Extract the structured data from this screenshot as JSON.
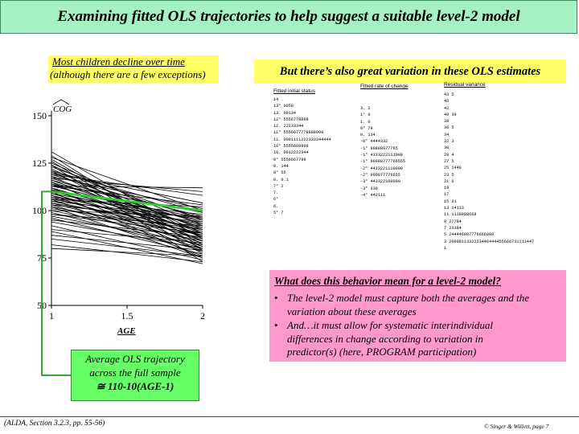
{
  "title": "Examining fitted OLS trajectories to help suggest a suitable level-2 model",
  "left_note": {
    "line1": "Most children decline over time",
    "line2": "(although there are a few exceptions)"
  },
  "right_heading": "But there’s also great variation in these OLS estimates",
  "stem_plots": [
    {
      "title": "Fitted initial status",
      "rows": [
        "14 .  ",
        "13° 0058",
        "13. 00134",
        "12° 5556778899",
        "12. 22233344",
        "11° 5556677778888999",
        "11. 0001111222333344444",
        "10° 5555668999",
        "10. 0012222344",
        "9° 5556667799",
        "9. 144",
        "8° 55",
        "8. 0.1",
        "7° 2",
        "7. ",
        "6° ",
        "6. ",
        "5° 7"
      ]
    },
    {
      "title": "Fitted rate of change",
      "rows": [
        "3. 2",
        "1° 0",
        "1. 0",
        "0° 79",
        "0. 134",
        "-0° 4444332",
        "-1° 99888877765",
        "-1° 4333222111000",
        "-1° 99988777766555",
        "-2° 4433221110000",
        "-2° 999877776655",
        "-3° 443322100000",
        "-3° 330",
        "-4° 442111"
      ]
    },
    {
      "title": "Residual variance",
      "rows": [
        "43 5",
        "46 ",
        "42 ",
        "40 39",
        "38 ",
        "36 5",
        "34 ",
        "32 3",
        "30 ",
        "29 4",
        "27 5",
        "25 1440",
        "23 5",
        "21 6",
        "19 ",
        "17 ",
        "15 21",
        "13 14133",
        "11 1118888668",
        "9 27784",
        "7 23384",
        "5 244446887776666888",
        "3 2000011332223446444455666731111447",
        "1 "
      ]
    }
  ],
  "chart_data": {
    "type": "line",
    "title": "",
    "xlabel": "AGE",
    "ylabel": "COG",
    "xlim": [
      1,
      2
    ],
    "ylim": [
      50,
      150
    ],
    "x_ticks": [
      "1",
      "1.5",
      "2"
    ],
    "y_ticks": [
      "50",
      "75",
      "100",
      "125",
      "150"
    ],
    "series_description_note": "",
    "series": [
      {
        "x": [
          1,
          2
        ],
        "y": [
          129,
          79
        ]
      },
      {
        "x": [
          1,
          2
        ],
        "y": [
          127,
          82
        ]
      },
      {
        "x": [
          1,
          2
        ],
        "y": [
          125,
          92
        ]
      },
      {
        "x": [
          1,
          2
        ],
        "y": [
          124,
          88
        ]
      },
      {
        "x": [
          1,
          2
        ],
        "y": [
          123,
          95
        ]
      },
      {
        "x": [
          1,
          2
        ],
        "y": [
          122,
          86
        ]
      },
      {
        "x": [
          1,
          2
        ],
        "y": [
          121,
          99
        ]
      },
      {
        "x": [
          1,
          2
        ],
        "y": [
          120,
          90
        ]
      },
      {
        "x": [
          1,
          2
        ],
        "y": [
          120,
          104
        ]
      },
      {
        "x": [
          1,
          2
        ],
        "y": [
          119,
          96
        ]
      },
      {
        "x": [
          1,
          2
        ],
        "y": [
          118,
          84
        ]
      },
      {
        "x": [
          1,
          2
        ],
        "y": [
          118,
          101
        ]
      },
      {
        "x": [
          1,
          2
        ],
        "y": [
          117,
          93
        ]
      },
      {
        "x": [
          1,
          2
        ],
        "y": [
          117,
          110
        ]
      },
      {
        "x": [
          1,
          2
        ],
        "y": [
          116,
          88
        ]
      },
      {
        "x": [
          1,
          2
        ],
        "y": [
          116,
          97
        ]
      },
      {
        "x": [
          1,
          2
        ],
        "y": [
          115,
          91
        ]
      },
      {
        "x": [
          1,
          2
        ],
        "y": [
          115,
          80
        ]
      },
      {
        "x": [
          1,
          2
        ],
        "y": [
          114,
          99
        ]
      },
      {
        "x": [
          1,
          2
        ],
        "y": [
          114,
          86
        ]
      },
      {
        "x": [
          1,
          2
        ],
        "y": [
          113,
          94
        ]
      },
      {
        "x": [
          1,
          2
        ],
        "y": [
          113,
          103
        ]
      },
      {
        "x": [
          1,
          2
        ],
        "y": [
          112,
          89
        ]
      },
      {
        "x": [
          1,
          2
        ],
        "y": [
          112,
          78
        ]
      },
      {
        "x": [
          1,
          2
        ],
        "y": [
          111,
          96
        ]
      },
      {
        "x": [
          1,
          2
        ],
        "y": [
          111,
          84
        ]
      },
      {
        "x": [
          1,
          2
        ],
        "y": [
          110,
          92
        ]
      },
      {
        "x": [
          1,
          2
        ],
        "y": [
          110,
          100
        ]
      },
      {
        "x": [
          1,
          2
        ],
        "y": [
          109,
          87
        ]
      },
      {
        "x": [
          1,
          2
        ],
        "y": [
          109,
          95
        ]
      },
      {
        "x": [
          1,
          2
        ],
        "y": [
          108,
          81
        ]
      },
      {
        "x": [
          1,
          2
        ],
        "y": [
          108,
          90
        ]
      },
      {
        "x": [
          1,
          2
        ],
        "y": [
          107,
          98
        ]
      },
      {
        "x": [
          1,
          2
        ],
        "y": [
          107,
          85
        ]
      },
      {
        "x": [
          1,
          2
        ],
        "y": [
          106,
          93
        ]
      },
      {
        "x": [
          1,
          2
        ],
        "y": [
          106,
          76
        ]
      },
      {
        "x": [
          1,
          2
        ],
        "y": [
          105,
          88
        ]
      },
      {
        "x": [
          1,
          2
        ],
        "y": [
          105,
          96
        ]
      },
      {
        "x": [
          1,
          2
        ],
        "y": [
          104,
          83
        ]
      },
      {
        "x": [
          1,
          2
        ],
        "y": [
          104,
          91
        ]
      },
      {
        "x": [
          1,
          2
        ],
        "y": [
          103,
          80
        ]
      },
      {
        "x": [
          1,
          2
        ],
        "y": [
          103,
          94
        ]
      },
      {
        "x": [
          1,
          2
        ],
        "y": [
          102,
          87
        ]
      },
      {
        "x": [
          1,
          2
        ],
        "y": [
          102,
          75
        ]
      },
      {
        "x": [
          1,
          2
        ],
        "y": [
          101,
          90
        ]
      },
      {
        "x": [
          1,
          2
        ],
        "y": [
          100,
          84
        ]
      },
      {
        "x": [
          1,
          2
        ],
        "y": [
          100,
          97
        ]
      },
      {
        "x": [
          1,
          2
        ],
        "y": [
          99,
          79
        ]
      },
      {
        "x": [
          1,
          2
        ],
        "y": [
          98,
          88
        ]
      },
      {
        "x": [
          1,
          2
        ],
        "y": [
          97,
          82
        ]
      },
      {
        "x": [
          1,
          2
        ],
        "y": [
          96,
          77
        ]
      },
      {
        "x": [
          1,
          2
        ],
        "y": [
          95,
          86
        ]
      },
      {
        "x": [
          1,
          2
        ],
        "y": [
          94,
          80
        ]
      },
      {
        "x": [
          1,
          2
        ],
        "y": [
          92,
          74
        ]
      },
      {
        "x": [
          1,
          2
        ],
        "y": [
          90,
          83
        ]
      },
      {
        "x": [
          1,
          2
        ],
        "y": [
          89,
          72
        ]
      },
      {
        "x": [
          1,
          2
        ],
        "y": [
          87,
          79
        ]
      },
      {
        "x": [
          1,
          2
        ],
        "y": [
          85,
          76
        ]
      },
      {
        "x": [
          1,
          2
        ],
        "y": [
          82,
          73
        ]
      },
      {
        "x": [
          1,
          2
        ],
        "y": [
          80,
          76
        ]
      },
      {
        "x": [
          1,
          2
        ],
        "y": [
          131,
          85
        ]
      },
      {
        "x": [
          1,
          2
        ],
        "y": [
          128,
          100
        ]
      },
      {
        "x": [
          1,
          2
        ],
        "y": [
          126,
          77
        ]
      },
      {
        "x": [
          1,
          2
        ],
        "y": [
          119,
          108
        ]
      },
      {
        "x": [
          1,
          2
        ],
        "y": [
          113,
          112
        ]
      },
      {
        "x": [
          1,
          2
        ],
        "y": [
          121,
          81
        ]
      },
      {
        "x": [
          1,
          2
        ],
        "y": [
          124,
          73
        ]
      },
      {
        "x": [
          1,
          2
        ],
        "y": [
          110,
          75
        ]
      },
      {
        "x": [
          1,
          2
        ],
        "y": [
          106,
          102
        ]
      },
      {
        "x": [
          1,
          2
        ],
        "y": [
          98,
          92
        ]
      }
    ],
    "average": {
      "x": [
        1,
        2
      ],
      "y": [
        110,
        100
      ]
    },
    "colors": {
      "average_line": "#33cc33",
      "trajectory": "#000000",
      "connector": "#33aa33"
    }
  },
  "pink_box": {
    "question": "What does this behavior mean for a level-2 model?",
    "bullets": [
      {
        "marker": "•",
        "line1": "The level-2 model must capture both the averages and the",
        "line2": "variation about these averages"
      },
      {
        "marker": "•",
        "line1": "And…it must allow for systematic interindividual",
        "line2": "differences in change according to variation in",
        "line3": "predictor(s) (here, PROGRAM participation)"
      }
    ]
  },
  "avg_box": {
    "line1": "Average OLS trajectory",
    "line2": "across the full sample",
    "line3": "110-10(AGE-1)",
    "symbol": "≅"
  },
  "footer": {
    "left": "(ALDA, Section 3.2.3, pp. 55-56)",
    "right": "© Singer & Willett, page 7"
  },
  "colors": {
    "title_bg": "#a6f0c6",
    "note_bg": "#ffff66",
    "pink_bg": "#ff99cc",
    "avg_bg": "#66ff66"
  }
}
